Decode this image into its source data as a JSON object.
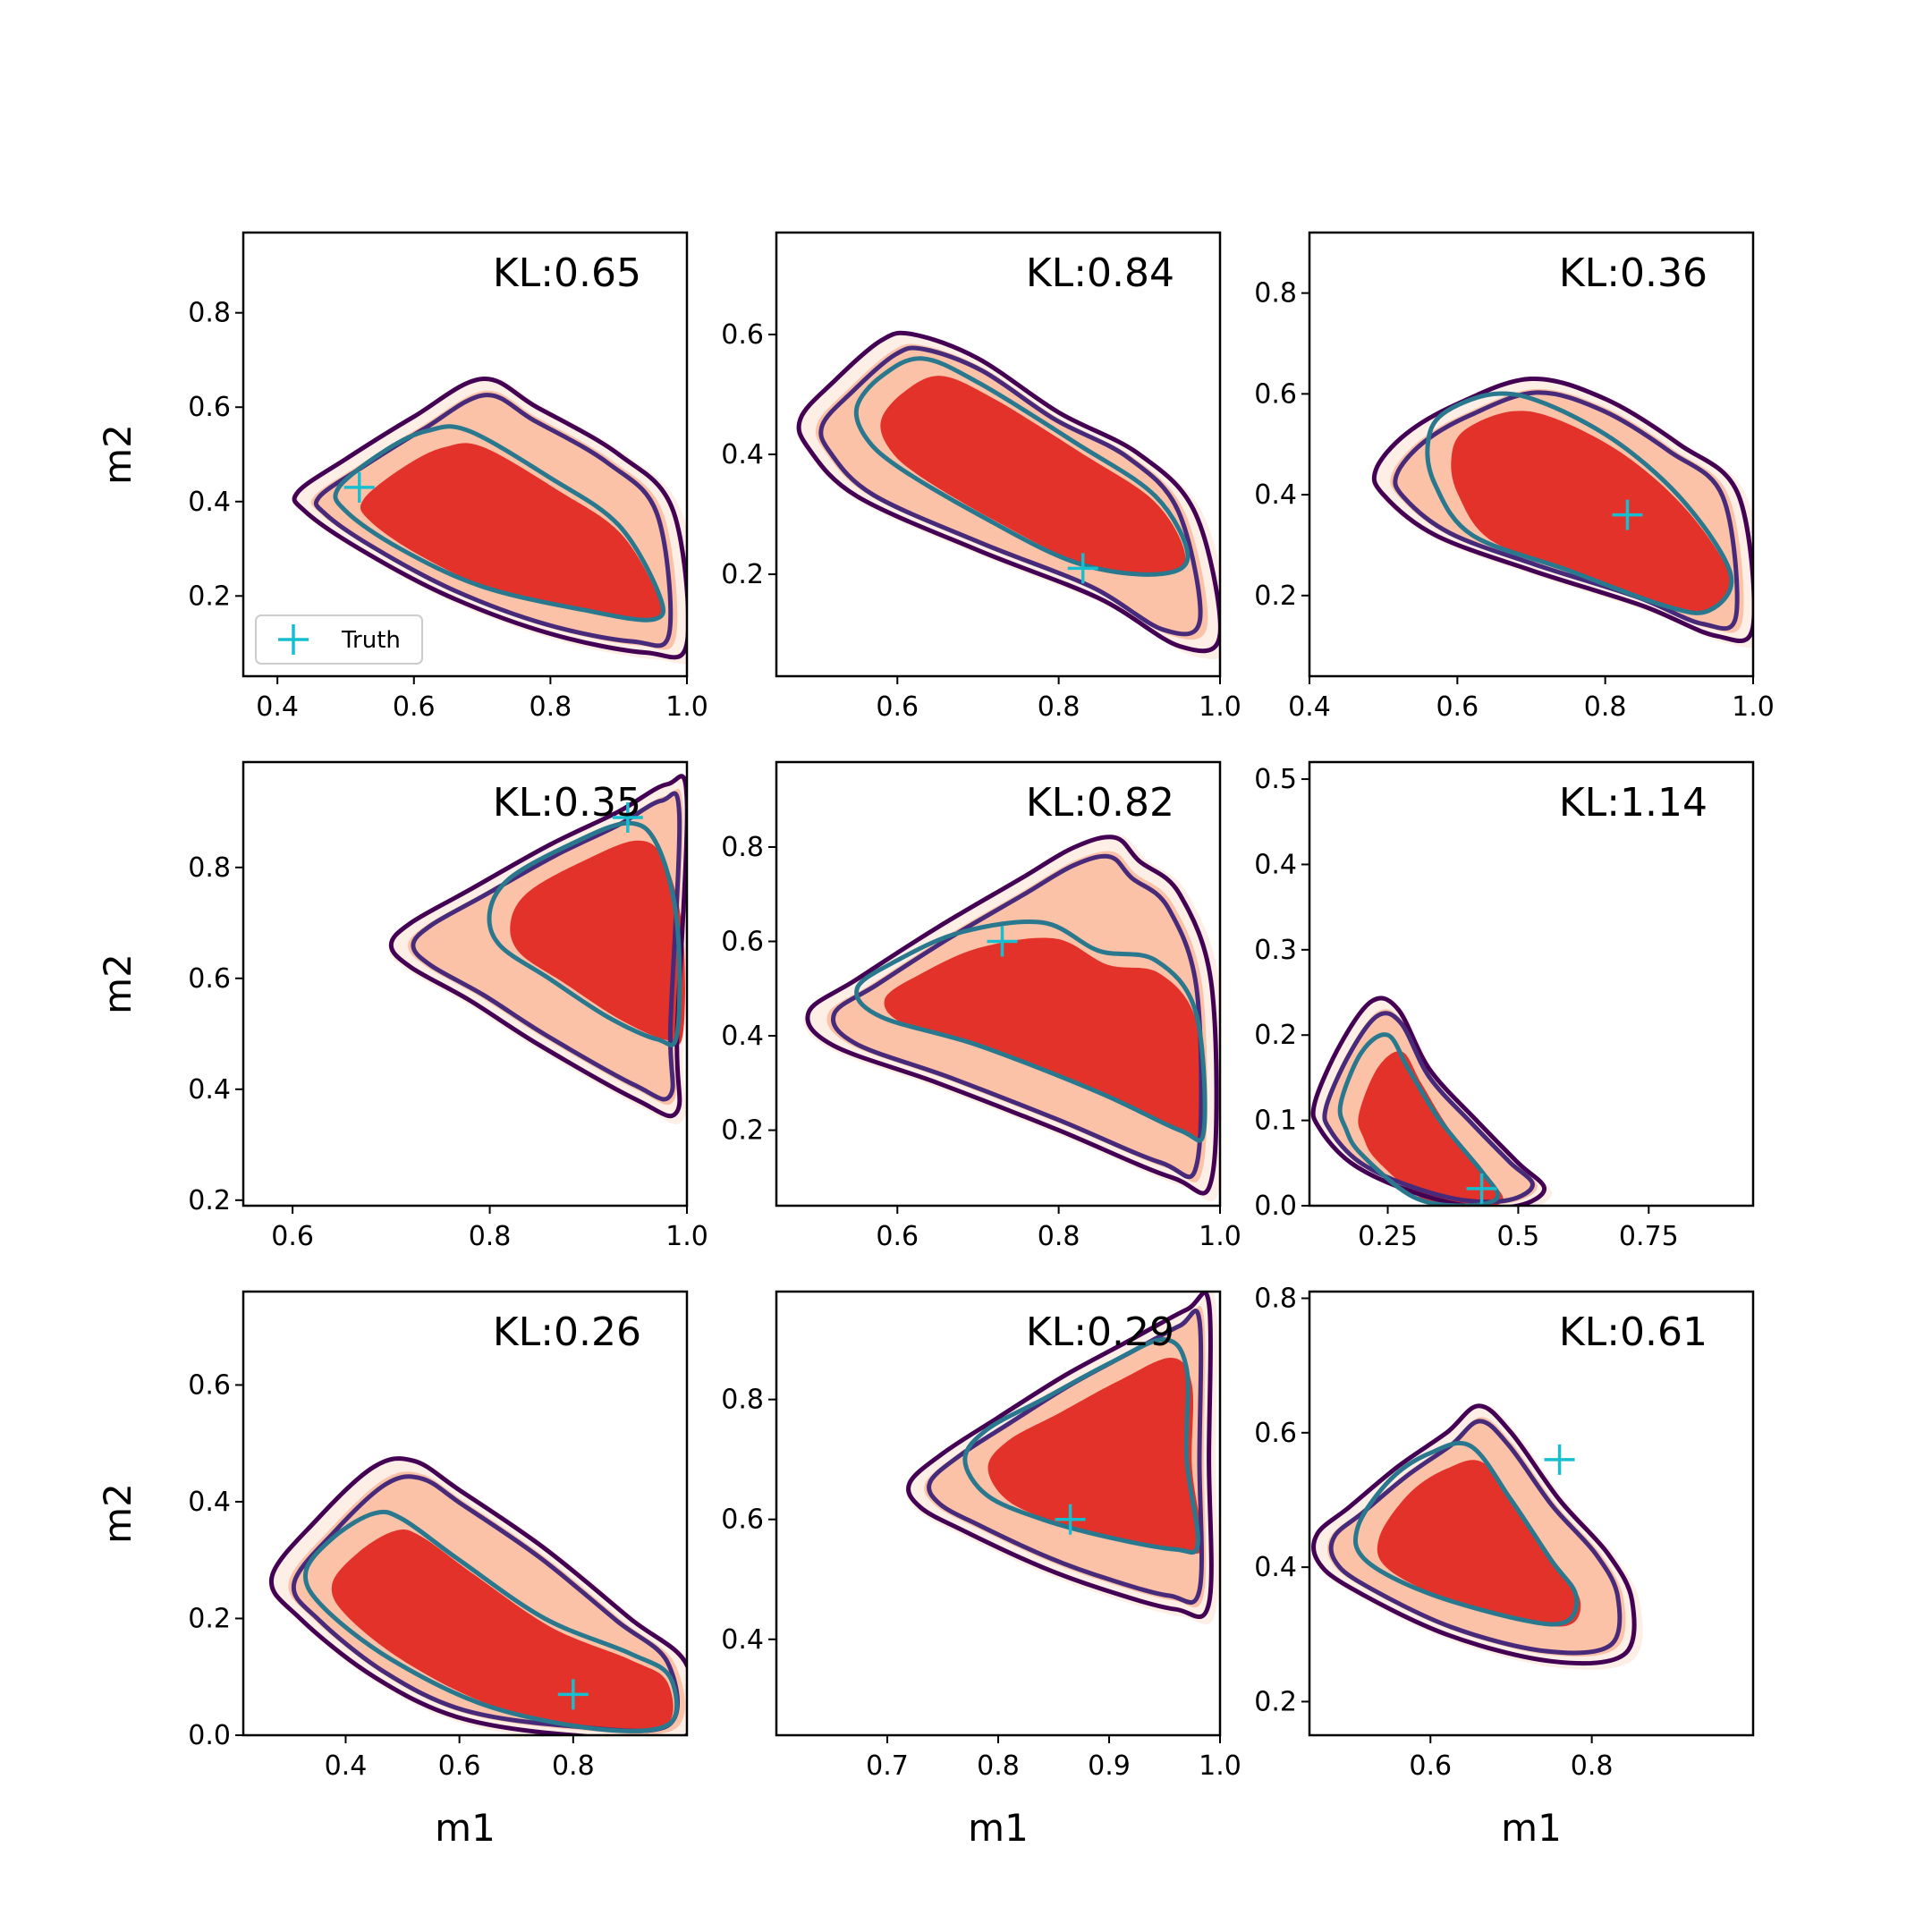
{
  "chart_data": {
    "type": "contour",
    "grid": "3x3",
    "legend": {
      "placement": "lower-left of first panel",
      "entries": [
        "Truth"
      ]
    },
    "colors": {
      "fill_outer": "#fdeee6",
      "fill_mid": "#fcc2a8",
      "fill_inner": "#e3322a",
      "contour_outer": "#440154",
      "contour_mid": "#472a7a",
      "contour_inner": "#2a788e",
      "truth": "#17becf"
    },
    "panels": [
      {
        "kl_label": "KL:0.65",
        "xlim": [
          0.35,
          1.0
        ],
        "ylim": [
          0.03,
          0.97
        ],
        "xticks": [
          0.4,
          0.6,
          0.8,
          1.0
        ],
        "yticks": [
          0.2,
          0.4,
          0.6,
          0.8
        ],
        "truth": [
          0.52,
          0.43
        ],
        "show_ylabel": true,
        "show_xlabel": false,
        "legend": true,
        "outer": [
          [
            0.43,
            0.42
          ],
          [
            0.5,
            0.49
          ],
          [
            0.6,
            0.58
          ],
          [
            0.7,
            0.66
          ],
          [
            0.78,
            0.6
          ],
          [
            0.9,
            0.5
          ],
          [
            0.98,
            0.38
          ],
          [
            1.0,
            0.1
          ],
          [
            0.94,
            0.08
          ],
          [
            0.8,
            0.12
          ],
          [
            0.65,
            0.2
          ],
          [
            0.52,
            0.3
          ],
          [
            0.44,
            0.38
          ]
        ],
        "inner": [
          [
            0.49,
            0.43
          ],
          [
            0.56,
            0.51
          ],
          [
            0.62,
            0.55
          ],
          [
            0.68,
            0.55
          ],
          [
            0.8,
            0.45
          ],
          [
            0.9,
            0.35
          ],
          [
            0.96,
            0.2
          ],
          [
            0.95,
            0.15
          ],
          [
            0.85,
            0.17
          ],
          [
            0.7,
            0.22
          ],
          [
            0.58,
            0.3
          ],
          [
            0.5,
            0.38
          ]
        ]
      },
      {
        "kl_label": "KL:0.84",
        "xlim": [
          0.45,
          1.0
        ],
        "ylim": [
          0.03,
          0.77
        ],
        "xticks": [
          0.6,
          0.8,
          1.0
        ],
        "yticks": [
          0.2,
          0.4,
          0.6
        ],
        "truth": [
          0.83,
          0.21
        ],
        "show_ylabel": false,
        "show_xlabel": false,
        "legend": false,
        "outer": [
          [
            0.48,
            0.46
          ],
          [
            0.52,
            0.52
          ],
          [
            0.58,
            0.59
          ],
          [
            0.62,
            0.6
          ],
          [
            0.7,
            0.56
          ],
          [
            0.8,
            0.47
          ],
          [
            0.9,
            0.4
          ],
          [
            0.97,
            0.3
          ],
          [
            1.0,
            0.1
          ],
          [
            0.95,
            0.08
          ],
          [
            0.85,
            0.16
          ],
          [
            0.7,
            0.24
          ],
          [
            0.55,
            0.33
          ],
          [
            0.49,
            0.41
          ]
        ],
        "inner": [
          [
            0.55,
            0.48
          ],
          [
            0.58,
            0.53
          ],
          [
            0.63,
            0.56
          ],
          [
            0.7,
            0.52
          ],
          [
            0.82,
            0.42
          ],
          [
            0.92,
            0.33
          ],
          [
            0.96,
            0.23
          ],
          [
            0.92,
            0.2
          ],
          [
            0.82,
            0.22
          ],
          [
            0.7,
            0.3
          ],
          [
            0.6,
            0.38
          ],
          [
            0.56,
            0.43
          ]
        ]
      },
      {
        "kl_label": "KL:0.36",
        "xlim": [
          0.4,
          1.0
        ],
        "ylim": [
          0.04,
          0.92
        ],
        "xticks": [
          0.4,
          0.6,
          0.8,
          1.0
        ],
        "yticks": [
          0.2,
          0.4,
          0.6,
          0.8
        ],
        "truth": [
          0.83,
          0.36
        ],
        "show_ylabel": false,
        "show_xlabel": false,
        "legend": false,
        "outer": [
          [
            0.49,
            0.45
          ],
          [
            0.53,
            0.52
          ],
          [
            0.6,
            0.58
          ],
          [
            0.7,
            0.63
          ],
          [
            0.8,
            0.59
          ],
          [
            0.9,
            0.5
          ],
          [
            0.98,
            0.4
          ],
          [
            1.0,
            0.14
          ],
          [
            0.95,
            0.12
          ],
          [
            0.85,
            0.18
          ],
          [
            0.7,
            0.25
          ],
          [
            0.57,
            0.32
          ],
          [
            0.5,
            0.4
          ]
        ],
        "inner": [
          [
            0.56,
            0.5
          ],
          [
            0.58,
            0.56
          ],
          [
            0.65,
            0.6
          ],
          [
            0.72,
            0.58
          ],
          [
            0.82,
            0.5
          ],
          [
            0.91,
            0.38
          ],
          [
            0.97,
            0.24
          ],
          [
            0.94,
            0.17
          ],
          [
            0.88,
            0.18
          ],
          [
            0.75,
            0.25
          ],
          [
            0.62,
            0.32
          ],
          [
            0.57,
            0.42
          ]
        ]
      },
      {
        "kl_label": "KL:0.35",
        "xlim": [
          0.55,
          1.0
        ],
        "ylim": [
          0.19,
          0.99
        ],
        "xticks": [
          0.6,
          0.8,
          1.0
        ],
        "yticks": [
          0.2,
          0.4,
          0.6,
          0.8
        ],
        "truth": [
          0.94,
          0.89
        ],
        "show_ylabel": true,
        "show_xlabel": false,
        "legend": false,
        "outer": [
          [
            0.7,
            0.66
          ],
          [
            0.72,
            0.7
          ],
          [
            0.78,
            0.76
          ],
          [
            0.86,
            0.84
          ],
          [
            0.93,
            0.9
          ],
          [
            0.98,
            0.95
          ],
          [
            1.0,
            0.92
          ],
          [
            0.99,
            0.5
          ],
          [
            0.99,
            0.36
          ],
          [
            0.95,
            0.38
          ],
          [
            0.85,
            0.48
          ],
          [
            0.78,
            0.56
          ],
          [
            0.72,
            0.62
          ]
        ],
        "inner": [
          [
            0.8,
            0.72
          ],
          [
            0.82,
            0.78
          ],
          [
            0.88,
            0.84
          ],
          [
            0.94,
            0.88
          ],
          [
            0.97,
            0.84
          ],
          [
            0.99,
            0.7
          ],
          [
            0.99,
            0.5
          ],
          [
            0.97,
            0.49
          ],
          [
            0.92,
            0.53
          ],
          [
            0.86,
            0.6
          ],
          [
            0.81,
            0.66
          ]
        ]
      },
      {
        "kl_label": "KL:0.82",
        "xlim": [
          0.45,
          1.0
        ],
        "ylim": [
          0.04,
          0.98
        ],
        "xticks": [
          0.6,
          0.8,
          1.0
        ],
        "yticks": [
          0.2,
          0.4,
          0.6,
          0.8
        ],
        "truth": [
          0.73,
          0.6
        ],
        "show_ylabel": false,
        "show_xlabel": false,
        "legend": false,
        "outer": [
          [
            0.49,
            0.45
          ],
          [
            0.55,
            0.52
          ],
          [
            0.65,
            0.63
          ],
          [
            0.75,
            0.73
          ],
          [
            0.82,
            0.8
          ],
          [
            0.87,
            0.82
          ],
          [
            0.9,
            0.77
          ],
          [
            0.95,
            0.7
          ],
          [
            0.99,
            0.5
          ],
          [
            0.99,
            0.1
          ],
          [
            0.94,
            0.1
          ],
          [
            0.8,
            0.2
          ],
          [
            0.65,
            0.3
          ],
          [
            0.52,
            0.38
          ]
        ],
        "inner": [
          [
            0.55,
            0.5
          ],
          [
            0.6,
            0.56
          ],
          [
            0.68,
            0.62
          ],
          [
            0.78,
            0.64
          ],
          [
            0.85,
            0.58
          ],
          [
            0.92,
            0.56
          ],
          [
            0.97,
            0.45
          ],
          [
            0.98,
            0.2
          ],
          [
            0.95,
            0.2
          ],
          [
            0.85,
            0.28
          ],
          [
            0.7,
            0.38
          ],
          [
            0.58,
            0.44
          ]
        ]
      },
      {
        "kl_label": "KL:1.14",
        "xlim": [
          0.1,
          0.95
        ],
        "ylim": [
          0.0,
          0.52
        ],
        "xticks": [
          0.25,
          0.5,
          0.75
        ],
        "yticks": [
          0.0,
          0.1,
          0.2,
          0.3,
          0.4,
          0.5
        ],
        "truth": [
          0.43,
          0.02
        ],
        "show_ylabel": false,
        "show_xlabel": false,
        "legend": false,
        "outer": [
          [
            0.11,
            0.12
          ],
          [
            0.16,
            0.19
          ],
          [
            0.22,
            0.24
          ],
          [
            0.27,
            0.23
          ],
          [
            0.33,
            0.16
          ],
          [
            0.42,
            0.1
          ],
          [
            0.5,
            0.05
          ],
          [
            0.55,
            0.02
          ],
          [
            0.5,
            0.0
          ],
          [
            0.4,
            0.0
          ],
          [
            0.28,
            0.02
          ],
          [
            0.18,
            0.05
          ],
          [
            0.12,
            0.09
          ]
        ],
        "inner": [
          [
            0.16,
            0.12
          ],
          [
            0.2,
            0.18
          ],
          [
            0.25,
            0.2
          ],
          [
            0.29,
            0.16
          ],
          [
            0.35,
            0.1
          ],
          [
            0.43,
            0.04
          ],
          [
            0.46,
            0.01
          ],
          [
            0.4,
            0.0
          ],
          [
            0.3,
            0.01
          ],
          [
            0.2,
            0.06
          ],
          [
            0.17,
            0.09
          ]
        ]
      },
      {
        "kl_label": "KL:0.26",
        "xlim": [
          0.22,
          1.0
        ],
        "ylim": [
          0.0,
          0.76
        ],
        "xticks": [
          0.4,
          0.6,
          0.8
        ],
        "yticks": [
          0.0,
          0.2,
          0.4,
          0.6
        ],
        "truth": [
          0.8,
          0.07
        ],
        "show_ylabel": true,
        "show_xlabel": true,
        "legend": false,
        "outer": [
          [
            0.27,
            0.27
          ],
          [
            0.35,
            0.37
          ],
          [
            0.45,
            0.46
          ],
          [
            0.52,
            0.47
          ],
          [
            0.6,
            0.42
          ],
          [
            0.75,
            0.32
          ],
          [
            0.9,
            0.2
          ],
          [
            1.0,
            0.12
          ],
          [
            1.0,
            0.0
          ],
          [
            0.8,
            0.0
          ],
          [
            0.6,
            0.03
          ],
          [
            0.45,
            0.1
          ],
          [
            0.32,
            0.2
          ]
        ],
        "inner": [
          [
            0.33,
            0.28
          ],
          [
            0.38,
            0.34
          ],
          [
            0.45,
            0.38
          ],
          [
            0.5,
            0.37
          ],
          [
            0.6,
            0.3
          ],
          [
            0.75,
            0.2
          ],
          [
            0.9,
            0.14
          ],
          [
            0.97,
            0.1
          ],
          [
            0.97,
            0.02
          ],
          [
            0.85,
            0.01
          ],
          [
            0.65,
            0.05
          ],
          [
            0.48,
            0.13
          ],
          [
            0.36,
            0.22
          ]
        ]
      },
      {
        "kl_label": "KL:0.29",
        "xlim": [
          0.6,
          1.0
        ],
        "ylim": [
          0.24,
          0.98
        ],
        "xticks": [
          0.7,
          0.8,
          0.9,
          1.0
        ],
        "yticks": [
          0.4,
          0.6,
          0.8
        ],
        "truth": [
          0.865,
          0.6
        ],
        "show_ylabel": false,
        "show_xlabel": true,
        "legend": false,
        "outer": [
          [
            0.72,
            0.66
          ],
          [
            0.75,
            0.71
          ],
          [
            0.8,
            0.77
          ],
          [
            0.86,
            0.84
          ],
          [
            0.92,
            0.9
          ],
          [
            0.97,
            0.95
          ],
          [
            0.99,
            0.96
          ],
          [
            0.99,
            0.7
          ],
          [
            0.99,
            0.46
          ],
          [
            0.96,
            0.45
          ],
          [
            0.9,
            0.48
          ],
          [
            0.84,
            0.52
          ],
          [
            0.77,
            0.58
          ],
          [
            0.73,
            0.62
          ]
        ],
        "inner": [
          [
            0.77,
            0.7
          ],
          [
            0.79,
            0.75
          ],
          [
            0.84,
            0.8
          ],
          [
            0.9,
            0.86
          ],
          [
            0.95,
            0.9
          ],
          [
            0.97,
            0.85
          ],
          [
            0.97,
            0.7
          ],
          [
            0.98,
            0.56
          ],
          [
            0.96,
            0.55
          ],
          [
            0.9,
            0.57
          ],
          [
            0.84,
            0.6
          ],
          [
            0.79,
            0.64
          ]
        ]
      },
      {
        "kl_label": "KL:0.61",
        "xlim": [
          0.45,
          1.0
        ],
        "ylim": [
          0.15,
          0.81
        ],
        "xticks": [
          0.6,
          0.8
        ],
        "yticks": [
          0.2,
          0.4,
          0.6,
          0.8
        ],
        "truth": [
          0.76,
          0.56
        ],
        "show_ylabel": false,
        "show_xlabel": true,
        "legend": false,
        "outer": [
          [
            0.46,
            0.45
          ],
          [
            0.5,
            0.49
          ],
          [
            0.56,
            0.55
          ],
          [
            0.62,
            0.6
          ],
          [
            0.66,
            0.64
          ],
          [
            0.7,
            0.6
          ],
          [
            0.76,
            0.5
          ],
          [
            0.82,
            0.42
          ],
          [
            0.85,
            0.35
          ],
          [
            0.84,
            0.27
          ],
          [
            0.75,
            0.26
          ],
          [
            0.62,
            0.3
          ],
          [
            0.5,
            0.37
          ],
          [
            0.46,
            0.41
          ]
        ],
        "inner": [
          [
            0.51,
            0.46
          ],
          [
            0.55,
            0.53
          ],
          [
            0.6,
            0.57
          ],
          [
            0.65,
            0.58
          ],
          [
            0.7,
            0.5
          ],
          [
            0.75,
            0.41
          ],
          [
            0.78,
            0.36
          ],
          [
            0.77,
            0.32
          ],
          [
            0.72,
            0.32
          ],
          [
            0.6,
            0.36
          ],
          [
            0.52,
            0.41
          ]
        ]
      }
    ],
    "xlabel": "m1",
    "ylabel": "m2"
  }
}
